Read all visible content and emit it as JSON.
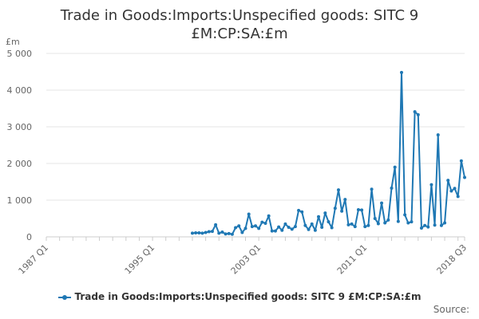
{
  "chart_data": {
    "type": "line",
    "title_line1": "Trade in Goods:Imports:Unspecified goods: SITC 9",
    "title_line2": "£M:CP:SA:£m",
    "ylabel": "£m",
    "ylim": [
      0,
      5000
    ],
    "yticks": [
      0,
      1000,
      2000,
      3000,
      4000,
      5000
    ],
    "ytick_labels": [
      "0",
      "1 000",
      "2 000",
      "3 000",
      "4 000",
      "5 000"
    ],
    "xticks": [
      "1987 Q1",
      "1995 Q1",
      "2003 Q1",
      "2011 Q1",
      "2018 Q3"
    ],
    "x_start": "1987 Q1",
    "x_end": "2018 Q3",
    "grid": true,
    "legend_position": "bottom",
    "series": [
      {
        "name": "Trade in Goods:Imports:Unspecified goods: SITC 9 £M:CP:SA:£m",
        "color": "#1f78b4",
        "start": "1998 Q1",
        "values": [
          100,
          110,
          110,
          100,
          120,
          140,
          150,
          330,
          100,
          130,
          80,
          90,
          70,
          250,
          300,
          120,
          230,
          620,
          280,
          300,
          230,
          400,
          370,
          570,
          160,
          160,
          270,
          180,
          350,
          260,
          210,
          280,
          720,
          680,
          310,
          200,
          350,
          180,
          550,
          260,
          650,
          410,
          250,
          780,
          1280,
          700,
          1020,
          330,
          350,
          280,
          740,
          730,
          280,
          310,
          1300,
          500,
          360,
          920,
          380,
          460,
          1330,
          1900,
          420,
          4480,
          600,
          380,
          410,
          3410,
          3330,
          240,
          310,
          270,
          1420,
          320,
          2780,
          310,
          380,
          1540,
          1250,
          1320,
          1100,
          2070,
          1620
        ]
      }
    ]
  },
  "legend": {
    "label": "Trade in Goods:Imports:Unspecified goods: SITC 9 £M:CP:SA:£m"
  },
  "source": {
    "label": "Source:"
  }
}
